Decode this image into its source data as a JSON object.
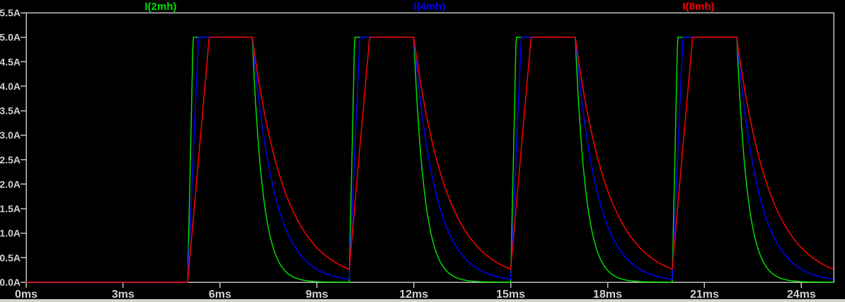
{
  "chart_data": {
    "type": "line",
    "description": "Inductor current waveforms vs time for three inductance values (pulsed drive)",
    "x_axis": {
      "unit": "ms",
      "min": 0,
      "max": 25,
      "tick_values": [
        0,
        3,
        6,
        9,
        12,
        15,
        18,
        21,
        24
      ],
      "tick_labels": [
        "0ms",
        "3ms",
        "6ms",
        "9ms",
        "12ms",
        "15ms",
        "18ms",
        "21ms",
        "24ms"
      ]
    },
    "y_axis": {
      "unit": "A",
      "min": 0,
      "max": 5.5,
      "tick_values": [
        0,
        0.5,
        1,
        1.5,
        2,
        2.5,
        3,
        3.5,
        4,
        4.5,
        5,
        5.5
      ],
      "tick_labels": [
        "0.0A",
        "0.5A",
        "1.0A",
        "1.5A",
        "2.0A",
        "2.5A",
        "3.0A",
        "3.5A",
        "4.0A",
        "4.5A",
        "5.0A",
        "5.5A"
      ]
    },
    "series": [
      {
        "name": "I(2mh)",
        "color": "#00dd00",
        "peak_A": 5.0,
        "rise_slope_A_per_ms": 30.0,
        "decay_tau_ms": 0.33
      },
      {
        "name": "I(4mh)",
        "color": "#0000ff",
        "peak_A": 5.0,
        "rise_slope_A_per_ms": 15.0,
        "decay_tau_ms": 0.68
      },
      {
        "name": "I(8mh)",
        "color": "#ff0000",
        "peak_A": 5.0,
        "rise_slope_A_per_ms": 7.5,
        "decay_tau_ms": 1.02
      }
    ],
    "drive_pulses": {
      "on_times_ms": [
        5,
        10,
        15,
        20
      ],
      "on_duration_ms": 2,
      "period_ms": 5,
      "amplitude_A": 5.0,
      "initial_value_A": 0.0
    },
    "grid": false,
    "legend_position": "top-centered-thirds",
    "colors": {
      "background": "#000000",
      "border": "#c0c0c0",
      "tick_text": "#d0d0d0",
      "bottom_strip": "#d5d2cb"
    }
  }
}
